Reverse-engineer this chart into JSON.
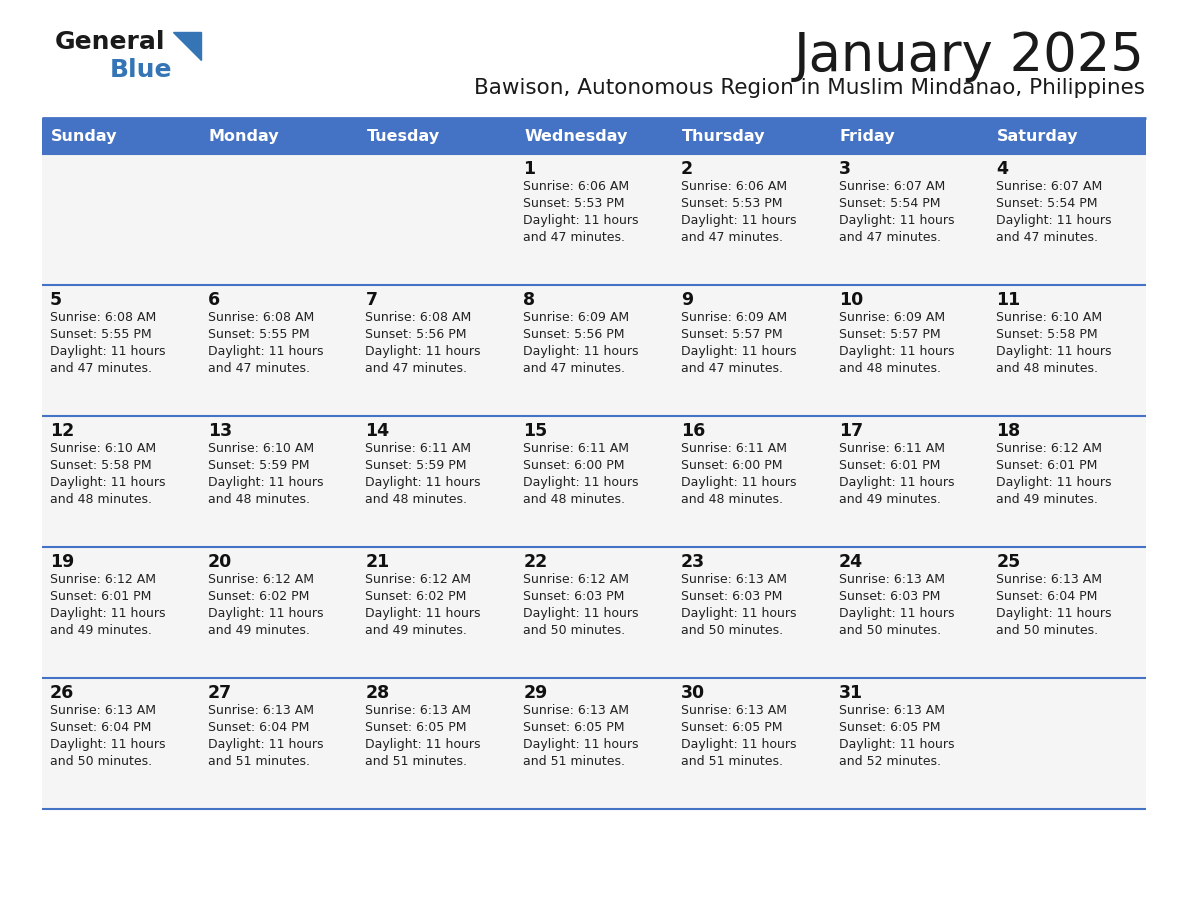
{
  "title": "January 2025",
  "subtitle": "Bawison, Autonomous Region in Muslim Mindanao, Philippines",
  "header_bg_color": "#4472C4",
  "header_text_color": "#FFFFFF",
  "days_of_week": [
    "Sunday",
    "Monday",
    "Tuesday",
    "Wednesday",
    "Thursday",
    "Friday",
    "Saturday"
  ],
  "cell_bg_color": "#F5F5F5",
  "cell_text_color": "#222222",
  "divider_color": "#4472C4",
  "logo_color_triangle": "#3575B5",
  "logo_color_blue_text": "#3575B5",
  "calendar": [
    [
      {
        "day": "",
        "sunrise": "",
        "sunset": "",
        "daylight_hours": 0,
        "daylight_minutes": 0
      },
      {
        "day": "",
        "sunrise": "",
        "sunset": "",
        "daylight_hours": 0,
        "daylight_minutes": 0
      },
      {
        "day": "",
        "sunrise": "",
        "sunset": "",
        "daylight_hours": 0,
        "daylight_minutes": 0
      },
      {
        "day": "1",
        "sunrise": "6:06 AM",
        "sunset": "5:53 PM",
        "daylight_hours": 11,
        "daylight_minutes": 47
      },
      {
        "day": "2",
        "sunrise": "6:06 AM",
        "sunset": "5:53 PM",
        "daylight_hours": 11,
        "daylight_minutes": 47
      },
      {
        "day": "3",
        "sunrise": "6:07 AM",
        "sunset": "5:54 PM",
        "daylight_hours": 11,
        "daylight_minutes": 47
      },
      {
        "day": "4",
        "sunrise": "6:07 AM",
        "sunset": "5:54 PM",
        "daylight_hours": 11,
        "daylight_minutes": 47
      }
    ],
    [
      {
        "day": "5",
        "sunrise": "6:08 AM",
        "sunset": "5:55 PM",
        "daylight_hours": 11,
        "daylight_minutes": 47
      },
      {
        "day": "6",
        "sunrise": "6:08 AM",
        "sunset": "5:55 PM",
        "daylight_hours": 11,
        "daylight_minutes": 47
      },
      {
        "day": "7",
        "sunrise": "6:08 AM",
        "sunset": "5:56 PM",
        "daylight_hours": 11,
        "daylight_minutes": 47
      },
      {
        "day": "8",
        "sunrise": "6:09 AM",
        "sunset": "5:56 PM",
        "daylight_hours": 11,
        "daylight_minutes": 47
      },
      {
        "day": "9",
        "sunrise": "6:09 AM",
        "sunset": "5:57 PM",
        "daylight_hours": 11,
        "daylight_minutes": 47
      },
      {
        "day": "10",
        "sunrise": "6:09 AM",
        "sunset": "5:57 PM",
        "daylight_hours": 11,
        "daylight_minutes": 48
      },
      {
        "day": "11",
        "sunrise": "6:10 AM",
        "sunset": "5:58 PM",
        "daylight_hours": 11,
        "daylight_minutes": 48
      }
    ],
    [
      {
        "day": "12",
        "sunrise": "6:10 AM",
        "sunset": "5:58 PM",
        "daylight_hours": 11,
        "daylight_minutes": 48
      },
      {
        "day": "13",
        "sunrise": "6:10 AM",
        "sunset": "5:59 PM",
        "daylight_hours": 11,
        "daylight_minutes": 48
      },
      {
        "day": "14",
        "sunrise": "6:11 AM",
        "sunset": "5:59 PM",
        "daylight_hours": 11,
        "daylight_minutes": 48
      },
      {
        "day": "15",
        "sunrise": "6:11 AM",
        "sunset": "6:00 PM",
        "daylight_hours": 11,
        "daylight_minutes": 48
      },
      {
        "day": "16",
        "sunrise": "6:11 AM",
        "sunset": "6:00 PM",
        "daylight_hours": 11,
        "daylight_minutes": 48
      },
      {
        "day": "17",
        "sunrise": "6:11 AM",
        "sunset": "6:01 PM",
        "daylight_hours": 11,
        "daylight_minutes": 49
      },
      {
        "day": "18",
        "sunrise": "6:12 AM",
        "sunset": "6:01 PM",
        "daylight_hours": 11,
        "daylight_minutes": 49
      }
    ],
    [
      {
        "day": "19",
        "sunrise": "6:12 AM",
        "sunset": "6:01 PM",
        "daylight_hours": 11,
        "daylight_minutes": 49
      },
      {
        "day": "20",
        "sunrise": "6:12 AM",
        "sunset": "6:02 PM",
        "daylight_hours": 11,
        "daylight_minutes": 49
      },
      {
        "day": "21",
        "sunrise": "6:12 AM",
        "sunset": "6:02 PM",
        "daylight_hours": 11,
        "daylight_minutes": 49
      },
      {
        "day": "22",
        "sunrise": "6:12 AM",
        "sunset": "6:03 PM",
        "daylight_hours": 11,
        "daylight_minutes": 50
      },
      {
        "day": "23",
        "sunrise": "6:13 AM",
        "sunset": "6:03 PM",
        "daylight_hours": 11,
        "daylight_minutes": 50
      },
      {
        "day": "24",
        "sunrise": "6:13 AM",
        "sunset": "6:03 PM",
        "daylight_hours": 11,
        "daylight_minutes": 50
      },
      {
        "day": "25",
        "sunrise": "6:13 AM",
        "sunset": "6:04 PM",
        "daylight_hours": 11,
        "daylight_minutes": 50
      }
    ],
    [
      {
        "day": "26",
        "sunrise": "6:13 AM",
        "sunset": "6:04 PM",
        "daylight_hours": 11,
        "daylight_minutes": 50
      },
      {
        "day": "27",
        "sunrise": "6:13 AM",
        "sunset": "6:04 PM",
        "daylight_hours": 11,
        "daylight_minutes": 51
      },
      {
        "day": "28",
        "sunrise": "6:13 AM",
        "sunset": "6:05 PM",
        "daylight_hours": 11,
        "daylight_minutes": 51
      },
      {
        "day": "29",
        "sunrise": "6:13 AM",
        "sunset": "6:05 PM",
        "daylight_hours": 11,
        "daylight_minutes": 51
      },
      {
        "day": "30",
        "sunrise": "6:13 AM",
        "sunset": "6:05 PM",
        "daylight_hours": 11,
        "daylight_minutes": 51
      },
      {
        "day": "31",
        "sunrise": "6:13 AM",
        "sunset": "6:05 PM",
        "daylight_hours": 11,
        "daylight_minutes": 52
      },
      {
        "day": "",
        "sunrise": "",
        "sunset": "",
        "daylight_hours": 0,
        "daylight_minutes": 0
      }
    ]
  ]
}
